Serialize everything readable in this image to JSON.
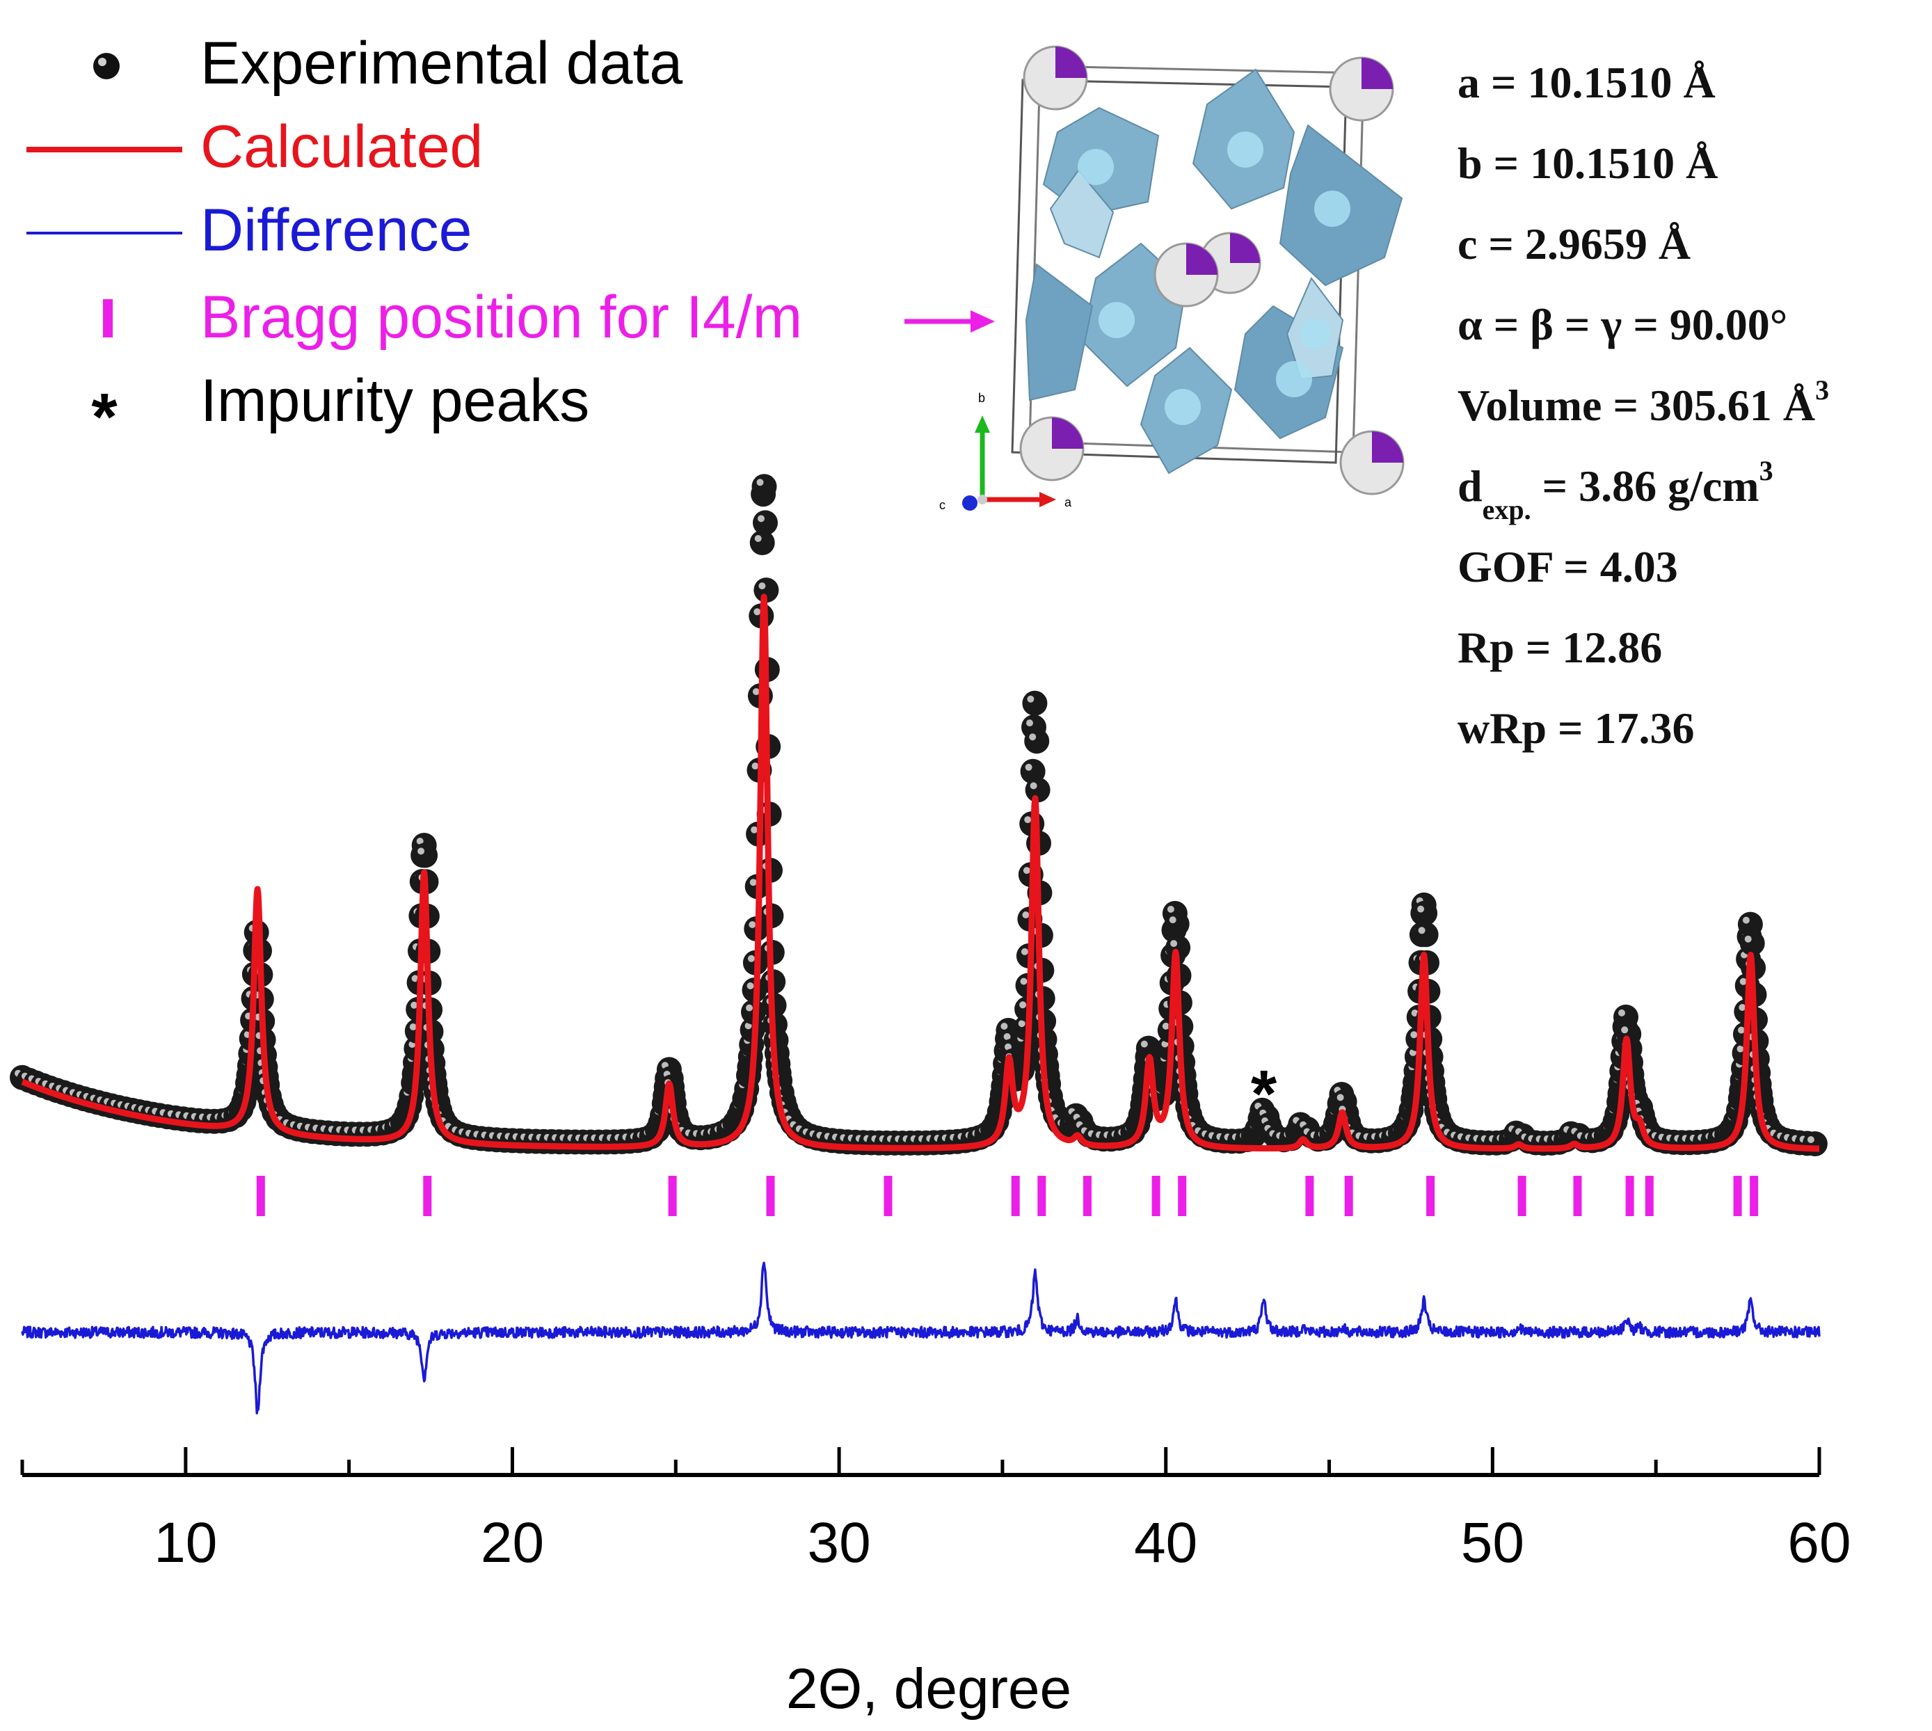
{
  "chart_data": {
    "type": "line",
    "title": "",
    "xlabel": "2Θ, degree",
    "ylabel": "",
    "xlim": [
      5,
      60
    ],
    "ylim": [
      -30,
      100
    ],
    "x_ticks": [
      10,
      20,
      30,
      40,
      50,
      60
    ],
    "x_tick_labels": [
      "10",
      "20",
      "30",
      "40",
      "50",
      "60"
    ],
    "grid": false,
    "legend_position": "top-left",
    "legend": [
      {
        "key": "experimental",
        "label": "Experimental data",
        "color": "#000000"
      },
      {
        "key": "calculated",
        "label": "Calculated",
        "color": "#e8141c"
      },
      {
        "key": "difference",
        "label": "Difference",
        "color": "#1a1ad6"
      },
      {
        "key": "bragg",
        "label": "Bragg position for I4/m",
        "color": "#ec1fe8"
      },
      {
        "key": "impurity",
        "label": "Impurity peaks",
        "symbol": "*",
        "color": "#000000"
      }
    ],
    "background": {
      "base": 2.5,
      "amplitude": 7.5,
      "decay_degrees": 5
    },
    "peaks": [
      {
        "position": 12.2,
        "calculated": 27.0,
        "experimental": 22.5,
        "difference": -9.0
      },
      {
        "position": 17.3,
        "calculated": 30.0,
        "experimental": 32.5,
        "difference": -5.0
      },
      {
        "position": 24.8,
        "calculated": 7.0,
        "experimental": 8.0,
        "difference": 0.0
      },
      {
        "position": 27.7,
        "calculated": 61.0,
        "experimental": 73.0,
        "difference": 8.0
      },
      {
        "position": 35.2,
        "calculated": 9.0,
        "experimental": 11.0,
        "difference": 0.0
      },
      {
        "position": 36.0,
        "calculated": 38.5,
        "experimental": 48.5,
        "difference": 6.5
      },
      {
        "position": 37.3,
        "calculated": 1.0,
        "experimental": 2.5,
        "difference": 1.5
      },
      {
        "position": 39.5,
        "calculated": 9.5,
        "experimental": 10.0,
        "difference": 0.0
      },
      {
        "position": 40.3,
        "calculated": 21.5,
        "experimental": 25.5,
        "difference": 3.5
      },
      {
        "position": 43.0,
        "calculated": 0.0,
        "experimental": 4.0,
        "difference": 3.5
      },
      {
        "position": 44.2,
        "calculated": 1.0,
        "experimental": 2.5,
        "difference": 0.5
      },
      {
        "position": 45.4,
        "calculated": 4.0,
        "experimental": 5.5,
        "difference": 0.5
      },
      {
        "position": 47.9,
        "calculated": 21.5,
        "experimental": 26.5,
        "difference": 3.5
      },
      {
        "position": 50.8,
        "calculated": 0.5,
        "experimental": 1.5,
        "difference": 0.5
      },
      {
        "position": 52.5,
        "calculated": 0.5,
        "experimental": 1.5,
        "difference": 0.0
      },
      {
        "position": 54.1,
        "calculated": 12.0,
        "experimental": 14.0,
        "difference": 1.5
      },
      {
        "position": 54.5,
        "calculated": 2.0,
        "experimental": 2.5,
        "difference": 0.5
      },
      {
        "position": 57.9,
        "calculated": 21.5,
        "experimental": 24.5,
        "difference": 3.5
      }
    ],
    "bragg_positions": [
      12.3,
      17.4,
      24.9,
      27.9,
      31.5,
      35.4,
      36.2,
      37.6,
      39.7,
      40.5,
      44.4,
      45.6,
      48.1,
      50.9,
      52.6,
      54.2,
      54.8,
      57.5,
      58.0
    ],
    "impurity_marks": [
      {
        "label": "*",
        "position": 43.0
      }
    ]
  },
  "refinement_parameters": [
    {
      "key": "a",
      "label": "a = 10.1510 Å",
      "sub": "",
      "rest": "",
      "sup": ""
    },
    {
      "key": "b",
      "label": "b = 10.1510 Å",
      "sub": "",
      "rest": "",
      "sup": ""
    },
    {
      "key": "c",
      "label": "c = 2.9659 Å",
      "sub": "",
      "rest": "",
      "sup": ""
    },
    {
      "key": "angles",
      "label": "α = β = γ = 90.00°",
      "sub": "",
      "rest": "",
      "sup": ""
    },
    {
      "key": "volume",
      "label": "Volume = 305.61 Å",
      "sub": "",
      "rest": "",
      "sup": "3"
    },
    {
      "key": "density",
      "label": "d",
      "sub": "exp.",
      "rest": " = 3.86 g/cm",
      "sup": "3"
    },
    {
      "key": "gof",
      "label": "GOF = 4.03",
      "sub": "",
      "rest": "",
      "sup": ""
    },
    {
      "key": "rp",
      "label": "Rp = 12.86",
      "sub": "",
      "rest": "",
      "sup": ""
    },
    {
      "key": "wrp",
      "label": "wRp = 17.36",
      "sub": "",
      "rest": "",
      "sup": ""
    }
  ],
  "crystal_structure": {
    "axes": {
      "b": "b",
      "a": "a",
      "c": "c"
    },
    "colors": {
      "octahedra": "#7fb0cc",
      "octahedra_light": "#b6d8e8",
      "atom_white": "#e8e8e8",
      "atom_purple": "#7a1fb0",
      "axis_b": "#1db81d",
      "axis_a": "#e01818",
      "axis_c": "#1a2bd6"
    }
  }
}
